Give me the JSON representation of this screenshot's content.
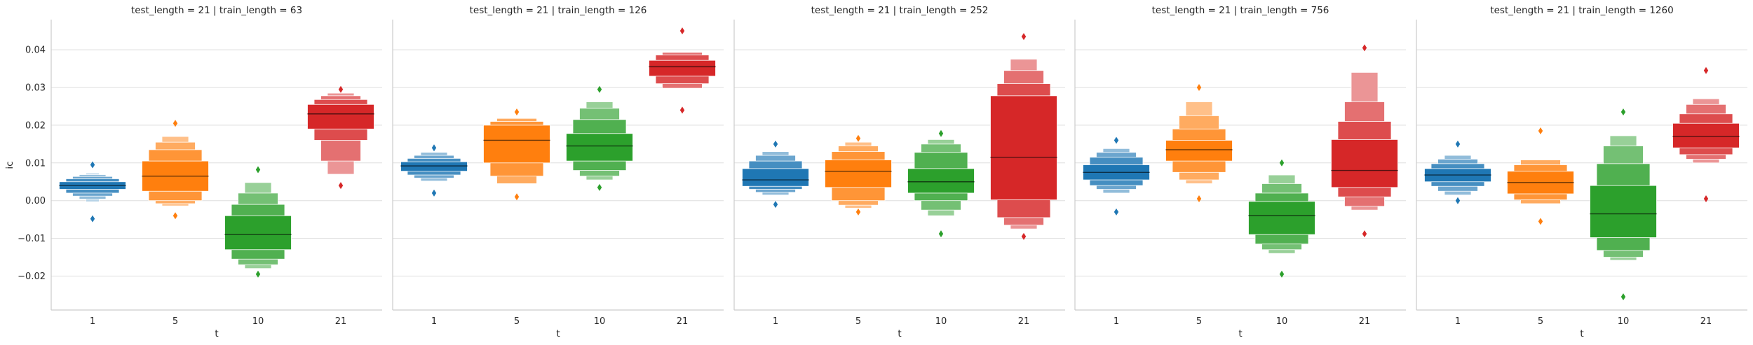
{
  "colors": {
    "series": [
      "#1f77b4",
      "#ff7f0e",
      "#2ca02c",
      "#d62728"
    ],
    "grid": "#dddddd",
    "axis": "#cccccc"
  },
  "chart_data": {
    "type": "boxen",
    "grid": "horizontal",
    "ylabel": "ic",
    "xlabel": "t",
    "categories": [
      "1",
      "5",
      "10",
      "21"
    ],
    "ylim": [
      -0.029,
      0.048
    ],
    "yticks": [
      -0.02,
      -0.01,
      0.0,
      0.01,
      0.02,
      0.03,
      0.04
    ],
    "ytick_labels": [
      "−0.02",
      "−0.01",
      "0.00",
      "0.01",
      "0.02",
      "0.03",
      "0.04"
    ],
    "panels": [
      {
        "title": "test_length = 21 | train_length = 63",
        "boxes": [
          {
            "category": "1",
            "median": 0.004,
            "levels": [
              [
                0.003,
                0.005
              ],
              [
                0.002,
                0.0058
              ],
              [
                0.0012,
                0.0064
              ],
              [
                0.0004,
                0.0069
              ],
              [
                -0.0003,
                0.0073
              ]
            ],
            "outliers": [
              0.0095,
              -0.0048
            ]
          },
          {
            "category": "5",
            "median": 0.0065,
            "levels": [
              [
                0.0025,
                0.0105
              ],
              [
                0.0,
                0.0135
              ],
              [
                -0.0008,
                0.0155
              ],
              [
                -0.0014,
                0.017
              ]
            ],
            "outliers": [
              0.0205,
              -0.004
            ]
          },
          {
            "category": "10",
            "median": -0.009,
            "levels": [
              [
                -0.013,
                -0.004
              ],
              [
                -0.0155,
                -0.001
              ],
              [
                -0.017,
                0.002
              ],
              [
                -0.018,
                0.0048
              ]
            ],
            "outliers": [
              0.0082,
              -0.0195
            ]
          },
          {
            "category": "21",
            "median": 0.023,
            "levels": [
              [
                0.019,
                0.0255
              ],
              [
                0.016,
                0.0268
              ],
              [
                0.0105,
                0.0278
              ],
              [
                0.007,
                0.0285
              ]
            ],
            "outliers": [
              0.0295,
              0.004
            ]
          }
        ]
      },
      {
        "title": "test_length = 21 | train_length = 126",
        "boxes": [
          {
            "category": "1",
            "median": 0.0092,
            "levels": [
              [
                0.0078,
                0.0103
              ],
              [
                0.0068,
                0.0112
              ],
              [
                0.006,
                0.012
              ],
              [
                0.0052,
                0.0128
              ]
            ],
            "outliers": [
              0.014,
              0.002
            ]
          },
          {
            "category": "5",
            "median": 0.016,
            "levels": [
              [
                0.01,
                0.02
              ],
              [
                0.0065,
                0.021
              ],
              [
                0.0045,
                0.0218
              ]
            ],
            "outliers": [
              0.0235,
              0.001
            ]
          },
          {
            "category": "10",
            "median": 0.0145,
            "levels": [
              [
                0.0105,
                0.0178
              ],
              [
                0.008,
                0.0215
              ],
              [
                0.0065,
                0.0245
              ],
              [
                0.0055,
                0.0262
              ]
            ],
            "outliers": [
              0.0295,
              0.0035
            ]
          },
          {
            "category": "21",
            "median": 0.0355,
            "levels": [
              [
                0.033,
                0.0372
              ],
              [
                0.031,
                0.0386
              ],
              [
                0.0298,
                0.0393
              ]
            ],
            "outliers": [
              0.045,
              0.024
            ]
          }
        ]
      },
      {
        "title": "test_length = 21 | train_length = 252",
        "boxes": [
          {
            "category": "1",
            "median": 0.0055,
            "levels": [
              [
                0.0038,
                0.0085
              ],
              [
                0.003,
                0.0105
              ],
              [
                0.0022,
                0.012
              ],
              [
                0.0015,
                0.013
              ]
            ],
            "outliers": [
              0.015,
              -0.001
            ]
          },
          {
            "category": "5",
            "median": 0.0078,
            "levels": [
              [
                0.0035,
                0.0108
              ],
              [
                0.0,
                0.013
              ],
              [
                -0.0012,
                0.0145
              ],
              [
                -0.002,
                0.0155
              ]
            ],
            "outliers": [
              0.0165,
              -0.003
            ]
          },
          {
            "category": "10",
            "median": 0.005,
            "levels": [
              [
                0.002,
                0.0085
              ],
              [
                0.0,
                0.0128
              ],
              [
                -0.0025,
                0.015
              ],
              [
                -0.004,
                0.0162
              ]
            ],
            "outliers": [
              0.0178,
              -0.0088
            ]
          },
          {
            "category": "21",
            "median": 0.0115,
            "levels": [
              [
                0.0002,
                0.0278
              ],
              [
                -0.0045,
                0.031
              ],
              [
                -0.0065,
                0.0345
              ],
              [
                -0.0075,
                0.0375
              ]
            ],
            "outliers": [
              0.0435,
              -0.0095
            ]
          }
        ]
      },
      {
        "title": "test_length = 21 | train_length = 756",
        "boxes": [
          {
            "category": "1",
            "median": 0.0075,
            "levels": [
              [
                0.0055,
                0.0095
              ],
              [
                0.004,
                0.0115
              ],
              [
                0.003,
                0.0128
              ],
              [
                0.002,
                0.0138
              ]
            ],
            "outliers": [
              0.016,
              -0.003
            ]
          },
          {
            "category": "5",
            "median": 0.0135,
            "levels": [
              [
                0.0105,
                0.016
              ],
              [
                0.0075,
                0.019
              ],
              [
                0.0055,
                0.0225
              ],
              [
                0.0045,
                0.0262
              ]
            ],
            "outliers": [
              0.03,
              0.0005
            ]
          },
          {
            "category": "10",
            "median": -0.004,
            "levels": [
              [
                -0.009,
                -0.0002
              ],
              [
                -0.0115,
                0.002
              ],
              [
                -0.013,
                0.0045
              ],
              [
                -0.014,
                0.0068
              ]
            ],
            "outliers": [
              0.01,
              -0.0195
            ]
          },
          {
            "category": "21",
            "median": 0.008,
            "levels": [
              [
                0.0035,
                0.0162
              ],
              [
                0.001,
                0.021
              ],
              [
                -0.0015,
                0.0262
              ],
              [
                -0.0025,
                0.034
              ]
            ],
            "outliers": [
              0.0405,
              -0.0088
            ]
          }
        ]
      },
      {
        "title": "test_length = 21 | train_length = 1260",
        "boxes": [
          {
            "category": "1",
            "median": 0.0068,
            "levels": [
              [
                0.005,
                0.0085
              ],
              [
                0.0038,
                0.0098
              ],
              [
                0.0025,
                0.011
              ],
              [
                0.0015,
                0.012
              ]
            ],
            "outliers": [
              0.015,
              0.0
            ]
          },
          {
            "category": "5",
            "median": 0.0048,
            "levels": [
              [
                0.0018,
                0.0078
              ],
              [
                0.0002,
                0.0095
              ],
              [
                -0.0008,
                0.0108
              ]
            ],
            "outliers": [
              0.0185,
              -0.0055
            ]
          },
          {
            "category": "10",
            "median": -0.0035,
            "levels": [
              [
                -0.0098,
                0.004
              ],
              [
                -0.0132,
                0.0098
              ],
              [
                -0.015,
                0.0145
              ],
              [
                -0.0158,
                0.0172
              ]
            ],
            "outliers": [
              0.0235,
              -0.0255
            ]
          },
          {
            "category": "21",
            "median": 0.017,
            "levels": [
              [
                0.014,
                0.0205
              ],
              [
                0.0122,
                0.023
              ],
              [
                0.011,
                0.0255
              ],
              [
                0.01,
                0.027
              ]
            ],
            "outliers": [
              0.0345,
              0.0005
            ]
          }
        ]
      }
    ]
  }
}
